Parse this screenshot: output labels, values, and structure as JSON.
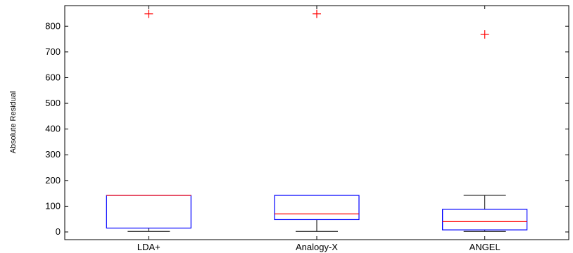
{
  "chart_data": {
    "type": "boxplot",
    "ylabel": "Absolute Residual",
    "ylim": [
      -30,
      880
    ],
    "yticks": [
      0,
      100,
      200,
      300,
      400,
      500,
      600,
      700,
      800
    ],
    "categories": [
      "LDA+",
      "Analogy-X",
      "ANGEL"
    ],
    "boxes": [
      {
        "category": "LDA+",
        "whisker_low": 2,
        "q1": 15,
        "median": 142,
        "q3": 142,
        "whisker_high": 142,
        "outliers": [
          848
        ]
      },
      {
        "category": "Analogy-X",
        "whisker_low": 2,
        "q1": 48,
        "median": 70,
        "q3": 142,
        "whisker_high": 142,
        "outliers": [
          848
        ]
      },
      {
        "category": "ANGEL",
        "whisker_low": 2,
        "q1": 8,
        "median": 40,
        "q3": 88,
        "whisker_high": 142,
        "outliers": [
          768
        ]
      }
    ],
    "colors": {
      "box": "#0000ff",
      "median": "#ff0000",
      "whisker": "#000000",
      "outlier": "#ff0000",
      "axes": "#000000"
    }
  }
}
